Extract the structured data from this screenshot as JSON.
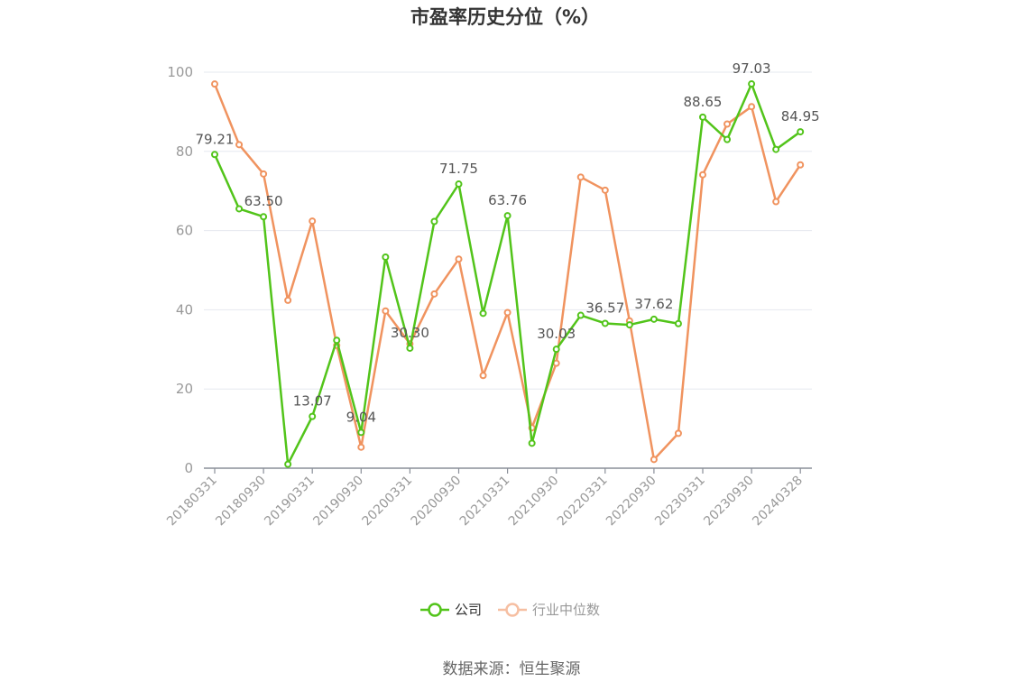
{
  "title": "市盈率历史分位（%）",
  "source": "数据来源：恒生聚源",
  "chart_data": {
    "type": "line",
    "title": "市盈率历史分位（%）",
    "ylim": [
      0,
      100
    ],
    "yticks": [
      "0",
      "20",
      "40",
      "60",
      "80",
      "100"
    ],
    "xtick_labels": [
      "20180331",
      "20180930",
      "20190331",
      "20190930",
      "20200331",
      "20200930",
      "20210331",
      "20210930",
      "20220331",
      "20220930",
      "20230331",
      "20230930",
      "20240328"
    ],
    "grid": true,
    "legend_position": "bottom-center",
    "x": [
      "20180331",
      "20180630",
      "20180930",
      "20181231",
      "20190331",
      "20190630",
      "20190930",
      "20191231",
      "20200331",
      "20200630",
      "20200930",
      "20201231",
      "20210331",
      "20210630",
      "20210930",
      "20211231",
      "20220331",
      "20220630",
      "20220930",
      "20221231",
      "20230331",
      "20230630",
      "20230930",
      "20231231",
      "20240328"
    ],
    "series": [
      {
        "name": "公司",
        "color": "#52c41a",
        "values": [
          79.21,
          65.5,
          63.5,
          1.0,
          13.07,
          32.3,
          9.04,
          53.3,
          30.3,
          62.3,
          71.75,
          39.1,
          63.76,
          6.3,
          30.03,
          38.6,
          36.57,
          36.2,
          37.62,
          36.5,
          88.65,
          83.0,
          97.03,
          80.5,
          84.95
        ],
        "labels": [
          "79.21",
          "",
          "63.50",
          "",
          "13.07",
          "",
          "9.04",
          "",
          "30.30",
          "",
          "71.75",
          "",
          "63.76",
          "",
          "30.03",
          "",
          "36.57",
          "",
          "37.62",
          "",
          "88.65",
          "",
          "97.03",
          "",
          "84.95"
        ]
      },
      {
        "name": "行业中位数",
        "color": "#f0935f",
        "values": [
          97.0,
          81.7,
          74.3,
          42.4,
          62.4,
          31.0,
          5.3,
          39.7,
          31.4,
          44.0,
          52.8,
          23.4,
          39.3,
          10.2,
          26.5,
          73.5,
          70.2,
          37.2,
          2.2,
          8.8,
          74.1,
          86.9,
          91.3,
          67.3,
          76.6
        ],
        "labels": []
      }
    ]
  }
}
